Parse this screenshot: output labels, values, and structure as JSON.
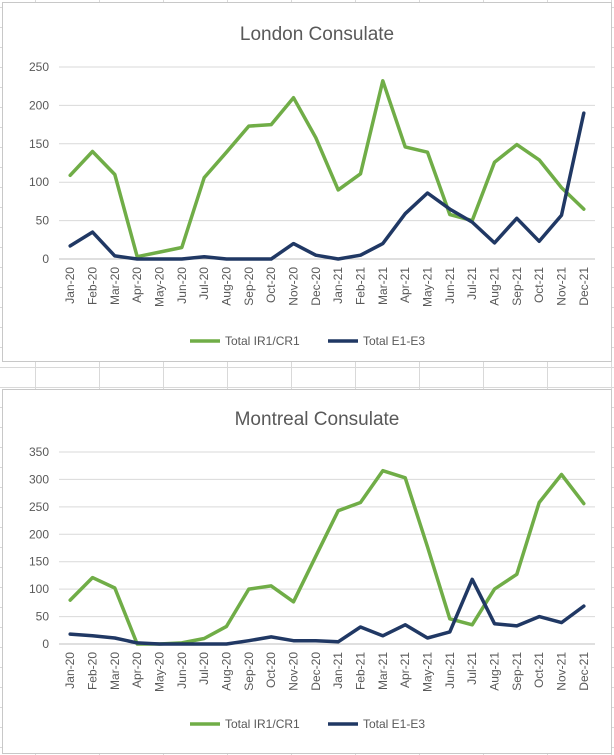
{
  "colors": {
    "ir1": "#70ad47",
    "e1": "#203864",
    "grid": "#d9d9d9",
    "text": "#595959"
  },
  "chart_data": [
    {
      "type": "line",
      "title": "London Consulate",
      "categories": [
        "Jan-20",
        "Feb-20",
        "Mar-20",
        "Apr-20",
        "May-20",
        "Jun-20",
        "Jul-20",
        "Aug-20",
        "Sep-20",
        "Oct-20",
        "Nov-20",
        "Dec-20",
        "Jan-21",
        "Feb-21",
        "Mar-21",
        "Apr-21",
        "May-21",
        "Jun-21",
        "Jul-21",
        "Aug-21",
        "Sep-21",
        "Oct-21",
        "Nov-21",
        "Dec-21"
      ],
      "series": [
        {
          "name": "Total IR1/CR1",
          "color": "#70ad47",
          "values": [
            109,
            140,
            110,
            3,
            9,
            15,
            106,
            139,
            173,
            175,
            210,
            158,
            90,
            111,
            232,
            146,
            139,
            58,
            50,
            126,
            149,
            129,
            93,
            65
          ]
        },
        {
          "name": "Total E1-E3",
          "color": "#203864",
          "values": [
            17,
            35,
            4,
            0,
            0,
            0,
            3,
            0,
            0,
            0,
            20,
            5,
            0,
            5,
            20,
            59,
            86,
            65,
            48,
            21,
            53,
            23,
            57,
            190
          ]
        }
      ],
      "yticks": [
        0,
        50,
        100,
        150,
        200,
        250
      ],
      "ylim": [
        0,
        250
      ],
      "grid": true,
      "legend": "bottom"
    },
    {
      "type": "line",
      "title": "Montreal Consulate",
      "categories": [
        "Jan-20",
        "Feb-20",
        "Mar-20",
        "Apr-20",
        "May-20",
        "Jun-20",
        "Jul-20",
        "Aug-20",
        "Sep-20",
        "Oct-20",
        "Nov-20",
        "Dec-20",
        "Jan-21",
        "Feb-21",
        "Mar-21",
        "Apr-21",
        "May-21",
        "Jun-21",
        "Jul-21",
        "Aug-21",
        "Sep-21",
        "Oct-21",
        "Nov-21",
        "Dec-21"
      ],
      "series": [
        {
          "name": "Total IR1/CR1",
          "color": "#70ad47",
          "values": [
            80,
            121,
            102,
            0,
            0,
            2,
            10,
            32,
            100,
            106,
            77,
            160,
            243,
            258,
            316,
            303,
            177,
            46,
            35,
            100,
            127,
            258,
            309,
            256
          ]
        },
        {
          "name": "Total E1-E3",
          "color": "#203864",
          "values": [
            18,
            15,
            11,
            2,
            0,
            0,
            0,
            0,
            6,
            13,
            6,
            6,
            4,
            31,
            15,
            35,
            11,
            22,
            118,
            37,
            33,
            50,
            39,
            69
          ]
        }
      ],
      "yticks": [
        0,
        50,
        100,
        150,
        200,
        250,
        300,
        350
      ],
      "ylim": [
        0,
        350
      ],
      "grid": true,
      "legend": "bottom"
    }
  ]
}
